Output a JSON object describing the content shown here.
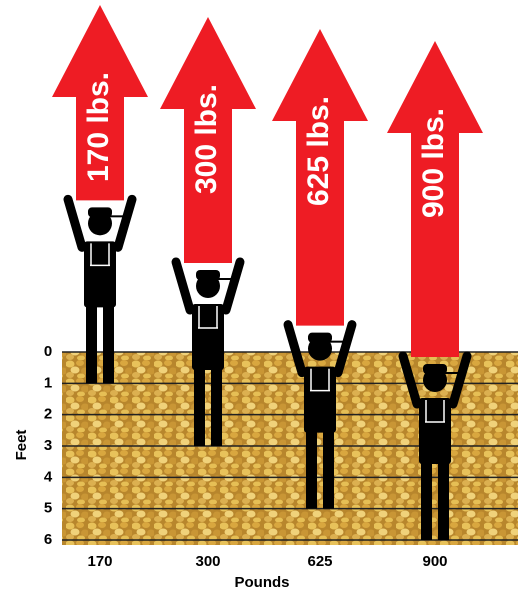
{
  "chart_data": {
    "type": "pictograph",
    "categories": [
      "170",
      "300",
      "625",
      "900"
    ],
    "arrow_labels": [
      "170 lbs.",
      "300 lbs.",
      "625 lbs.",
      "900 lbs."
    ],
    "values": [
      1,
      3,
      5,
      6
    ],
    "ylim": [
      0,
      6
    ],
    "yticks": [
      0,
      1,
      2,
      3,
      4,
      5,
      6
    ],
    "y_label": "Feet",
    "x_label": "Pounds",
    "arrow_color": "#ee1c24",
    "figure_color": "#000000",
    "grid": true
  }
}
